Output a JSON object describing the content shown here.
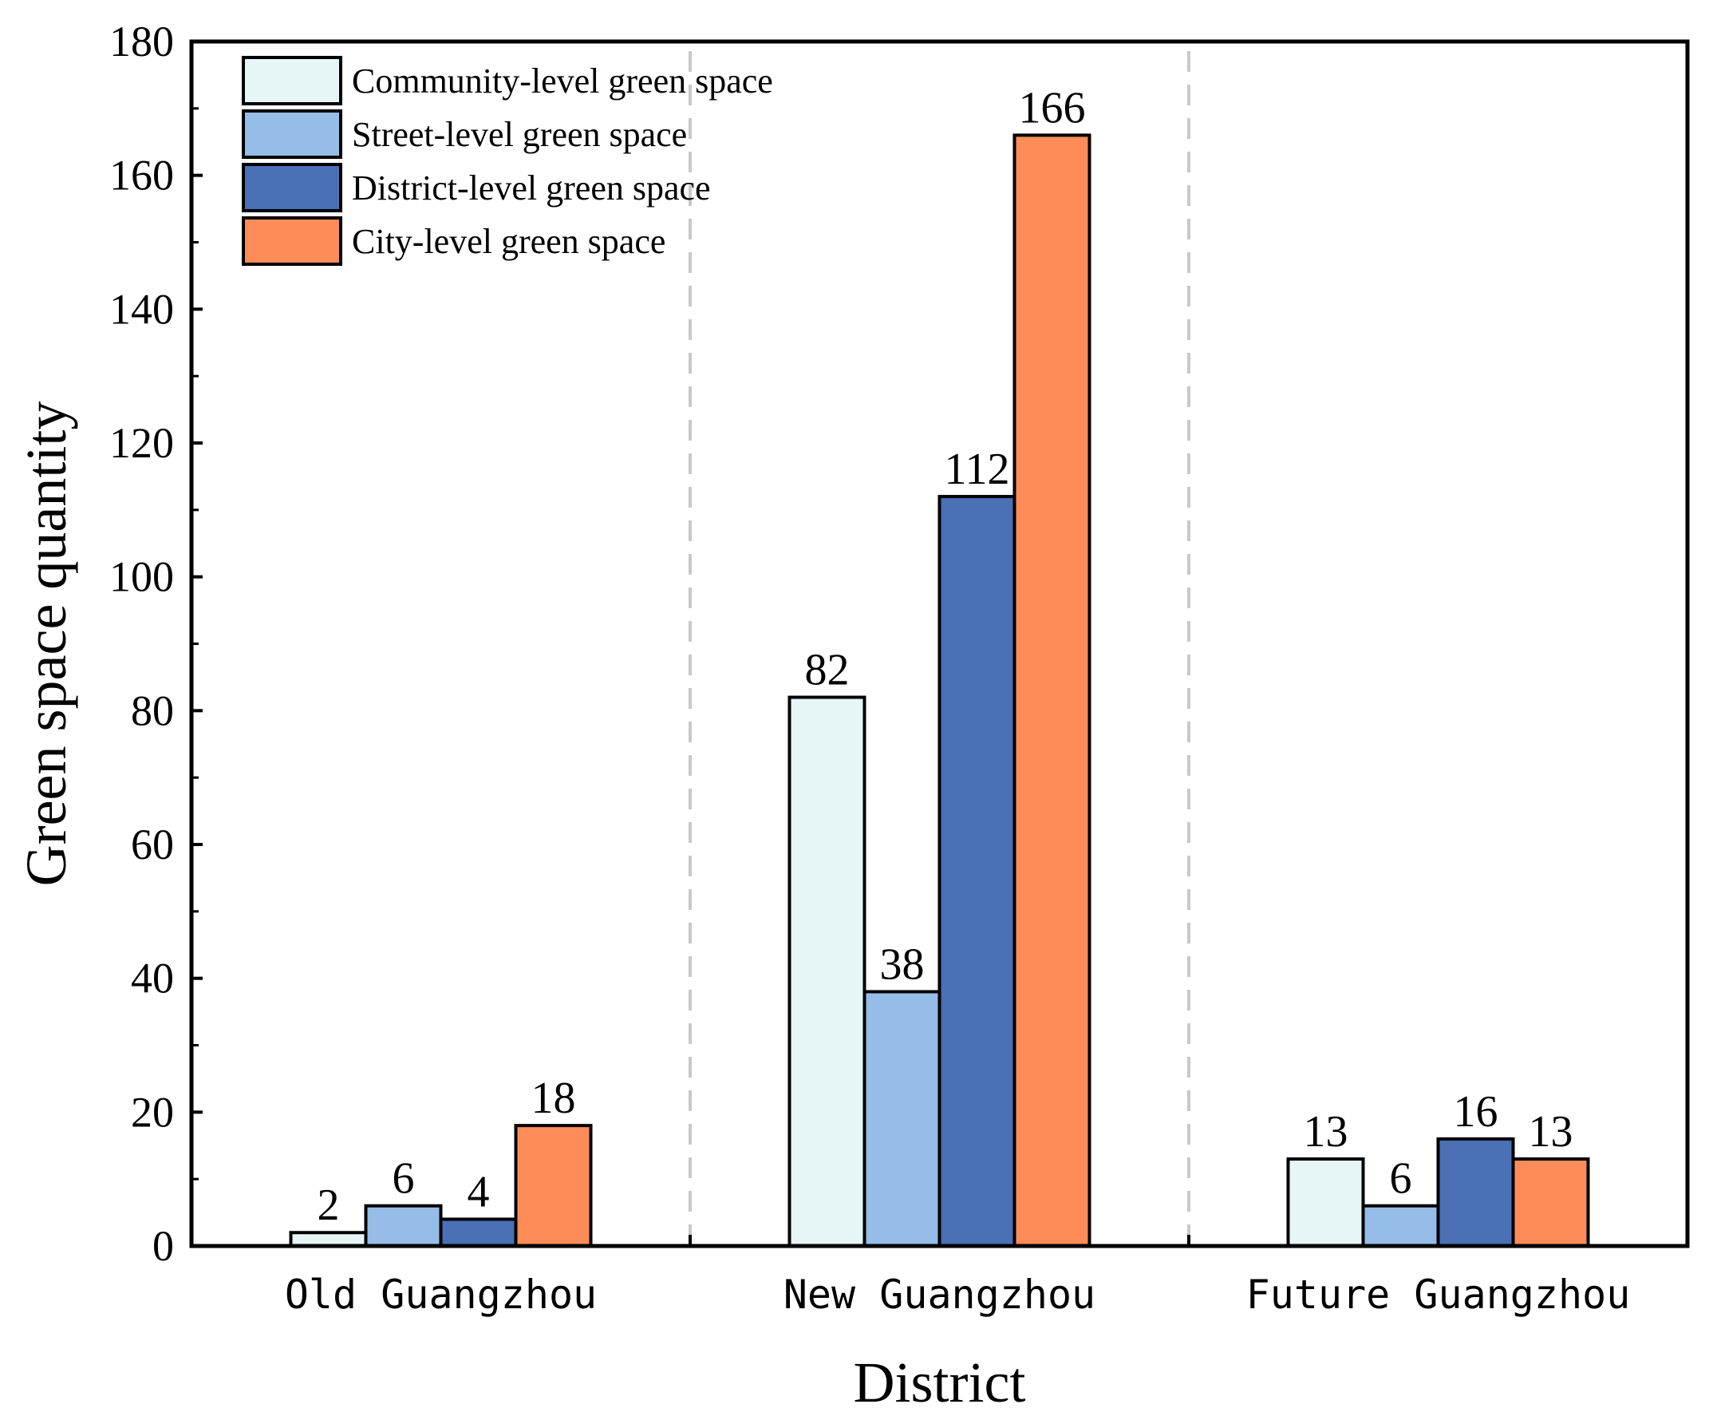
{
  "chart_data": {
    "type": "bar",
    "xlabel": "District",
    "ylabel": "Green space quantity",
    "ylim": [
      0,
      180
    ],
    "yticks": [
      0,
      20,
      40,
      60,
      80,
      100,
      120,
      140,
      160,
      180
    ],
    "categories": [
      "Old Guangzhou",
      "New Guangzhou",
      "Future Guangzhou"
    ],
    "series": [
      {
        "name": "Community-level green space",
        "color": "#E6F5F5",
        "values": [
          2,
          82,
          13
        ]
      },
      {
        "name": "Street-level green space",
        "color": "#95BDE7",
        "values": [
          6,
          38,
          6
        ]
      },
      {
        "name": "District-level green space",
        "color": "#4A70B5",
        "values": [
          4,
          112,
          16
        ]
      },
      {
        "name": "City-level green space",
        "color": "#FE8C58",
        "values": [
          18,
          166,
          13
        ]
      }
    ],
    "legend_position": "top-left",
    "category_separators": "dashed"
  }
}
